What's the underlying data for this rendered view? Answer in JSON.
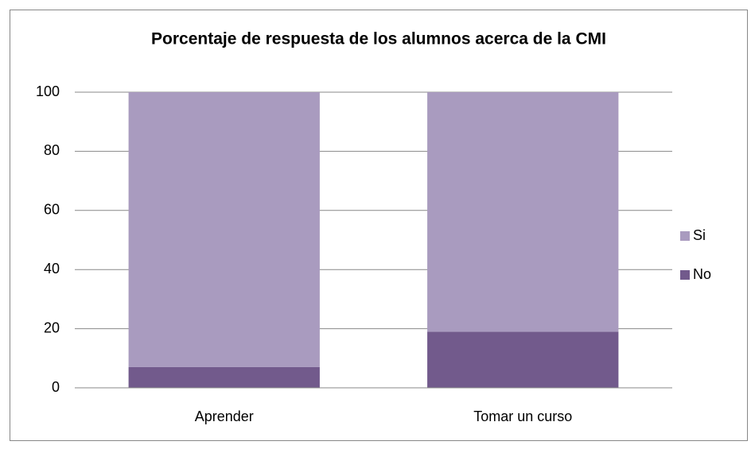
{
  "chart_data": {
    "type": "stacked_bar",
    "title": "Porcentaje de respuesta de los alumnos acerca de la CMI",
    "categories": [
      "Aprender",
      "Tomar un curso"
    ],
    "series": [
      {
        "name": "No",
        "color": "#725a8c",
        "values": [
          7,
          19
        ]
      },
      {
        "name": "Si",
        "color": "#a99bbf",
        "values": [
          93,
          81
        ]
      }
    ],
    "ylim": [
      0,
      100
    ],
    "yticks": [
      0,
      20,
      40,
      60,
      80,
      100
    ],
    "grid": true,
    "legend": "right"
  }
}
